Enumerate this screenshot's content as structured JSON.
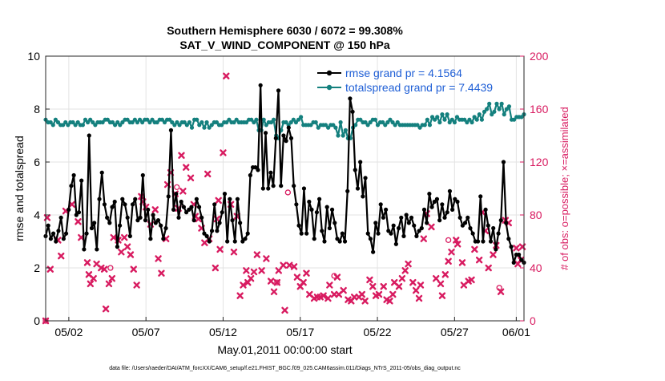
{
  "chart_data": {
    "type": "line",
    "title_line1": "Southern Hemisphere 6030 / 6072 = 99.308%",
    "title_line2": "SAT_V_WIND_COMPONENT @ 150 hPa",
    "xlabel": "May.01,2011 00:00:00 start",
    "ylabel_left": "rmse and totalspread",
    "ylabel_right": "# of obs: o=possible; ×=assimilated",
    "footnote": "data file: /Users/raeder/DAI/ATM_forcXX/CAM6_setup/f.e21.FHIST_BGC.f09_025.CAM6assim.011/Diags_NTrS_2011-05/obs_diag_output.nc",
    "xlim": [
      0.5,
      31.5
    ],
    "ylim_left": [
      0,
      10
    ],
    "ylim_right": [
      0,
      200
    ],
    "x_ticks": [
      {
        "x": 2,
        "label": "05/02"
      },
      {
        "x": 7,
        "label": "05/07"
      },
      {
        "x": 12,
        "label": "05/12"
      },
      {
        "x": 17,
        "label": "05/17"
      },
      {
        "x": 22,
        "label": "05/22"
      },
      {
        "x": 27,
        "label": "05/27"
      },
      {
        "x": 31,
        "label": "06/01"
      }
    ],
    "y_ticks_left": [
      0,
      2,
      4,
      6,
      8,
      10
    ],
    "y_ticks_right": [
      0,
      40,
      80,
      120,
      160,
      200
    ],
    "grid": true,
    "legend_position": "top-right",
    "series": [
      {
        "name": "rmse grand pr = 4.1564",
        "color": "#000000",
        "axis": "left",
        "values": [
          3.2,
          3.6,
          3.1,
          3.3,
          3.0,
          3.4,
          3.9,
          3.1,
          3.3,
          4.2,
          5.1,
          5.5,
          4.0,
          4.1,
          5.3,
          2.7,
          3.3,
          7.0,
          3.5,
          3.7,
          2.7,
          4.6,
          5.6,
          4.4,
          3.9,
          3.7,
          4.3,
          4.5,
          2.8,
          3.6,
          4.6,
          4.4,
          3.9,
          3.2,
          4.4,
          4.6,
          3.8,
          3.9,
          5.5,
          3.8,
          4.2,
          3.1,
          4.0,
          3.7,
          3.8,
          3.6,
          3.1,
          3.5,
          4.7,
          7.2,
          4.2,
          4.8,
          3.9,
          4.5,
          4.3,
          4.1,
          4.2,
          4.3,
          3.8,
          4.6,
          4.3,
          3.9,
          3.3,
          3.2,
          3.0,
          3.4,
          4.4,
          3.4,
          3.7,
          4.1,
          4.8,
          3.0,
          4.6,
          3.8,
          3.0,
          4.6,
          3.7,
          3.0,
          3.1,
          3.3,
          5.5,
          5.8,
          5.8,
          5.7,
          8.9,
          5.0,
          7.1,
          5.0,
          5.6,
          5.1,
          6.9,
          8.7,
          5.1,
          7.0,
          6.8,
          7.3,
          6.9,
          5.1,
          4.4,
          3.6,
          3.3,
          5.0,
          3.3,
          4.5,
          4.2,
          3.1,
          4.1,
          4.6,
          3.4,
          3.0,
          4.3,
          3.5,
          4.2,
          3.7,
          3.1,
          3.0,
          3.3,
          3.0,
          4.9,
          8.4,
          7.9,
          5.7,
          5.0,
          6.0,
          4.7,
          5.4,
          3.3,
          3.1,
          2.6,
          3.7,
          3.3,
          4.4,
          3.9,
          4.2,
          3.4,
          3.3,
          3.6,
          2.9,
          3.5,
          3.9,
          3.2,
          4.0,
          3.7,
          3.9,
          3.6,
          3.2,
          3.4,
          3.5,
          4.2,
          3.7,
          4.8,
          4.3,
          4.5,
          4.6,
          3.8,
          4.4,
          3.9,
          4.1,
          4.9,
          4.2,
          4.6,
          4.5,
          3.9,
          3.6,
          3.7,
          3.9,
          3.5,
          3.3,
          3.0,
          3.0,
          4.7,
          3.0,
          4.2,
          3.6,
          3.0,
          3.5,
          2.7,
          3.3,
          3.8,
          6.0,
          3.7,
          3.1,
          2.8,
          2.2,
          2.5,
          2.5,
          2.3,
          2.2
        ]
      },
      {
        "name": "totalspread grand pr = 7.4439",
        "color": "#14807e",
        "axis": "left",
        "values": [
          7.6,
          7.5,
          7.5,
          7.4,
          7.6,
          7.5,
          7.4,
          7.4,
          7.5,
          7.4,
          7.5,
          7.5,
          7.4,
          7.5,
          7.4,
          7.4,
          7.6,
          7.5,
          7.6,
          7.5,
          7.4,
          7.5,
          7.5,
          7.5,
          7.6,
          7.6,
          7.5,
          7.5,
          7.4,
          7.5,
          7.4,
          7.5,
          7.6,
          7.6,
          7.5,
          7.5,
          7.6,
          7.5,
          7.6,
          7.5,
          7.6,
          7.6,
          7.5,
          7.6,
          7.5,
          7.5,
          7.6,
          7.6,
          7.5,
          7.6,
          7.6,
          7.5,
          7.4,
          7.5,
          7.4,
          7.5,
          7.5,
          7.4,
          7.5,
          7.3,
          7.6,
          7.6,
          7.4,
          7.5,
          7.3,
          7.5,
          7.3,
          7.4,
          7.5,
          7.5,
          7.4,
          7.4,
          7.5,
          7.5,
          7.6,
          7.5,
          7.5,
          7.6,
          7.5,
          7.5,
          7.5,
          7.5,
          7.6,
          7.6,
          7.5,
          7.6,
          7.2,
          7.2,
          7.6,
          7.4,
          7.5,
          7.5,
          7.6,
          7.0,
          6.9,
          7.2,
          7.5,
          7.5,
          7.4,
          7.5,
          7.6,
          7.5,
          7.6,
          7.7,
          7.4,
          7.4,
          7.4,
          7.4,
          7.5,
          7.5,
          7.3,
          7.4,
          7.4,
          7.4,
          7.3,
          7.4,
          7.4,
          7.3,
          7.0,
          7.5,
          7.0,
          7.2,
          6.9,
          6.9,
          7.3,
          7.4,
          7.6,
          7.6,
          7.5,
          7.5,
          7.4,
          7.5,
          7.6,
          7.6,
          7.4,
          7.5,
          7.5,
          7.4,
          7.5,
          7.6,
          7.5,
          7.4,
          7.5,
          7.4,
          7.4,
          7.4,
          7.4,
          7.4,
          7.4,
          7.4,
          7.4,
          7.3,
          7.4,
          7.4,
          7.6,
          7.4,
          7.7,
          7.6,
          7.7,
          7.5,
          7.8,
          7.6,
          7.8,
          7.5,
          7.6,
          7.5,
          7.7,
          7.6,
          7.6,
          7.6,
          7.5,
          7.6,
          7.5,
          7.7,
          7.6,
          7.8,
          7.6,
          7.9,
          8.0,
          8.2,
          7.8,
          7.9,
          8.2,
          8.0,
          8.2,
          7.8,
          8.0,
          8.1,
          7.6,
          7.6,
          7.7,
          7.7,
          7.7,
          7.8
        ]
      },
      {
        "name": "obs possible",
        "marker": "o",
        "color": "#d81b60",
        "axis": "right",
        "points": [
          [
            0.5,
            0
          ],
          [
            9,
            101
          ],
          [
            16.2,
            97
          ],
          [
            15.5,
            29
          ],
          [
            19.2,
            34
          ],
          [
            26.6,
            61
          ],
          [
            29.9,
            25
          ],
          [
            4.7,
            40
          ]
        ]
      },
      {
        "name": "obs assimilated",
        "marker": "x",
        "color": "#d81b60",
        "axis": "right",
        "points": [
          [
            0.5,
            0
          ],
          [
            0.6,
            78
          ],
          [
            0.8,
            39
          ],
          [
            1.3,
            61
          ],
          [
            1.5,
            49
          ],
          [
            1.8,
            83
          ],
          [
            2.2,
            88
          ],
          [
            2.6,
            75
          ],
          [
            2.8,
            63
          ],
          [
            3.2,
            44
          ],
          [
            3.3,
            35
          ],
          [
            3.4,
            28
          ],
          [
            3.6,
            32
          ],
          [
            3.8,
            43
          ],
          [
            4.1,
            40
          ],
          [
            4.3,
            39
          ],
          [
            4.4,
            9
          ],
          [
            4.6,
            28
          ],
          [
            4.8,
            32
          ],
          [
            4.9,
            63
          ],
          [
            5.2,
            61
          ],
          [
            5.4,
            52
          ],
          [
            5.6,
            63
          ],
          [
            5.8,
            56
          ],
          [
            6.0,
            50
          ],
          [
            6.2,
            39
          ],
          [
            6.4,
            27
          ],
          [
            6.7,
            94
          ],
          [
            6.8,
            90
          ],
          [
            7.0,
            86
          ],
          [
            7.3,
            73
          ],
          [
            7.6,
            84
          ],
          [
            7.8,
            47
          ],
          [
            8.0,
            36
          ],
          [
            8.3,
            62
          ],
          [
            8.4,
            103
          ],
          [
            8.6,
            112
          ],
          [
            8.9,
            96
          ],
          [
            9.1,
            85
          ],
          [
            9.3,
            125
          ],
          [
            9.4,
            98
          ],
          [
            9.6,
            116
          ],
          [
            9.9,
            108
          ],
          [
            10.1,
            88
          ],
          [
            10.2,
            79
          ],
          [
            10.4,
            77
          ],
          [
            10.6,
            70
          ],
          [
            10.8,
            59
          ],
          [
            11.0,
            111
          ],
          [
            11.1,
            62
          ],
          [
            11.5,
            40
          ],
          [
            11.6,
            77
          ],
          [
            11.7,
            91
          ],
          [
            11.8,
            54
          ],
          [
            12.0,
            127
          ],
          [
            12.2,
            185
          ],
          [
            12.5,
            88
          ],
          [
            12.7,
            52
          ],
          [
            12.9,
            79
          ],
          [
            13.1,
            19
          ],
          [
            13.3,
            27
          ],
          [
            13.5,
            38
          ],
          [
            13.6,
            29
          ],
          [
            13.8,
            32
          ],
          [
            14.0,
            37
          ],
          [
            14.2,
            50
          ],
          [
            14.5,
            38
          ],
          [
            14.8,
            47
          ],
          [
            15.1,
            30
          ],
          [
            15.3,
            22
          ],
          [
            15.5,
            29
          ],
          [
            15.6,
            38
          ],
          [
            15.9,
            42
          ],
          [
            16.0,
            8
          ],
          [
            16.3,
            42
          ],
          [
            16.6,
            41
          ],
          [
            16.8,
            33
          ],
          [
            17.0,
            26
          ],
          [
            17.2,
            29
          ],
          [
            17.4,
            36
          ],
          [
            17.6,
            20
          ],
          [
            17.9,
            17
          ],
          [
            18.1,
            18
          ],
          [
            18.3,
            18
          ],
          [
            18.5,
            19
          ],
          [
            18.8,
            17
          ],
          [
            18.9,
            27
          ],
          [
            19.2,
            20
          ],
          [
            19.4,
            33
          ],
          [
            19.5,
            20
          ],
          [
            19.8,
            23
          ],
          [
            20.1,
            16
          ],
          [
            20.3,
            15
          ],
          [
            20.5,
            18
          ],
          [
            20.8,
            18
          ],
          [
            21.0,
            20
          ],
          [
            21.2,
            15
          ],
          [
            21.5,
            31
          ],
          [
            21.7,
            26
          ],
          [
            21.9,
            19
          ],
          [
            22.1,
            20
          ],
          [
            22.4,
            26
          ],
          [
            22.6,
            16
          ],
          [
            22.8,
            15
          ],
          [
            23.0,
            20
          ],
          [
            23.1,
            29
          ],
          [
            23.4,
            26
          ],
          [
            23.6,
            32
          ],
          [
            23.8,
            38
          ],
          [
            24.0,
            43
          ],
          [
            24.3,
            29
          ],
          [
            24.5,
            23
          ],
          [
            24.7,
            17
          ],
          [
            24.8,
            27
          ],
          [
            25.0,
            62
          ],
          [
            25.2,
            81
          ],
          [
            25.5,
            71
          ],
          [
            25.8,
            32
          ],
          [
            26.1,
            28
          ],
          [
            26.2,
            19
          ],
          [
            26.4,
            35
          ],
          [
            26.6,
            45
          ],
          [
            26.8,
            52
          ],
          [
            27.1,
            61
          ],
          [
            27.2,
            58
          ],
          [
            27.5,
            44
          ],
          [
            27.6,
            27
          ],
          [
            27.9,
            30
          ],
          [
            28.1,
            31
          ],
          [
            28.3,
            54
          ],
          [
            28.6,
            46
          ],
          [
            28.8,
            82
          ],
          [
            29.0,
            68
          ],
          [
            29.2,
            40
          ],
          [
            29.5,
            50
          ],
          [
            29.7,
            57
          ],
          [
            30.0,
            22
          ],
          [
            30.3,
            76
          ],
          [
            30.5,
            74
          ],
          [
            31.0,
            55
          ],
          [
            31.1,
            43
          ],
          [
            31.3,
            46
          ],
          [
            31.4,
            56
          ]
        ]
      }
    ]
  }
}
